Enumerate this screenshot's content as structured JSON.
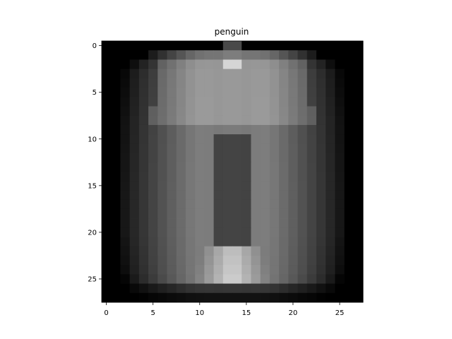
{
  "chart_data": {
    "type": "heatmap",
    "title": "penguin",
    "colormap": "gray",
    "image_shape": [
      28,
      28
    ],
    "x_ticks": [
      0,
      5,
      10,
      15,
      20,
      25
    ],
    "y_ticks": [
      0,
      5,
      10,
      15,
      20,
      25
    ],
    "xlim": [
      -0.5,
      27.5
    ],
    "ylim": [
      27.5,
      -0.5
    ],
    "value_range": [
      0,
      255
    ],
    "profile": {
      "row_envelope": [
        [
          0,
          2
        ],
        [
          0.6,
          14
        ],
        [
          1,
          19
        ],
        [
          2,
          22
        ],
        [
          3,
          23.5
        ],
        [
          8,
          24.5
        ],
        [
          15,
          25
        ],
        [
          20,
          25
        ],
        [
          24,
          24
        ],
        [
          26,
          22.5
        ],
        [
          27,
          20
        ]
      ],
      "top_cap_rows": [
        0,
        1,
        2
      ],
      "top_cap_values": [
        40,
        150,
        255
      ],
      "upper_body_row_range": [
        2,
        8
      ],
      "central_dark_column_range": [
        11.5,
        15.5
      ],
      "central_dark_row_range": [
        10,
        22
      ],
      "bottom_band_row_range": [
        22,
        25
      ],
      "bottom_band_values": [
        200,
        215
      ],
      "bottom_edge_rows": [
        26,
        27
      ]
    }
  }
}
